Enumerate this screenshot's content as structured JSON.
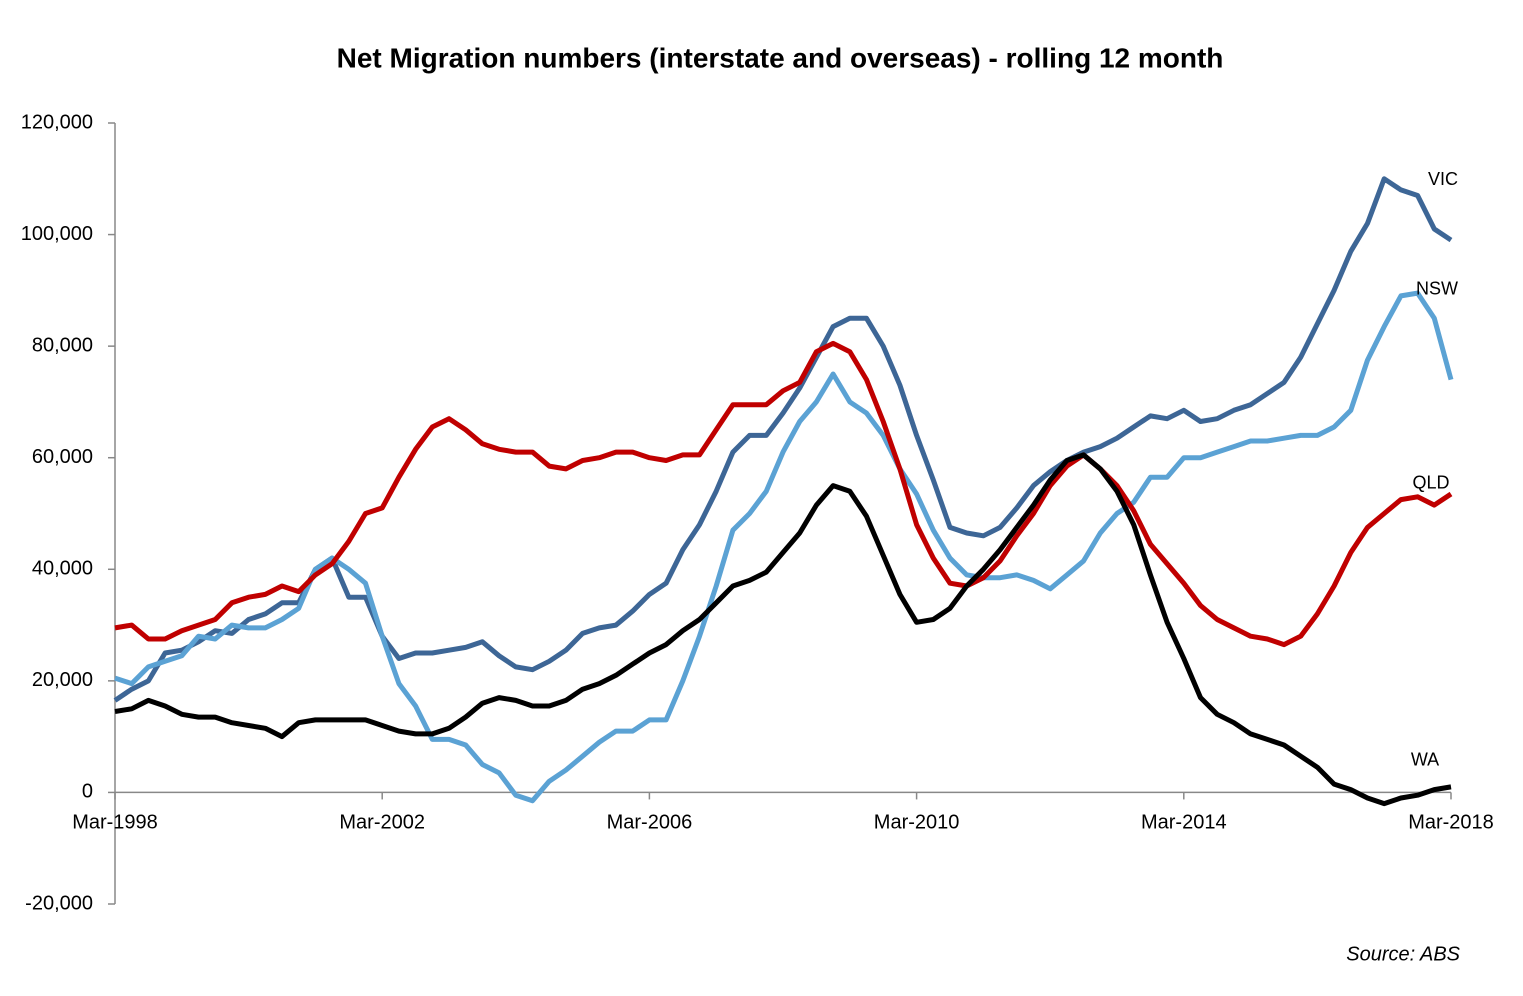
{
  "chart_data": {
    "type": "line",
    "title": "Net Migration numbers (interstate and overseas) - rolling 12 month",
    "source": "Source: ABS",
    "categories": [
      "Mar-1998",
      null,
      null,
      null,
      null,
      null,
      null,
      null,
      null,
      null,
      null,
      null,
      null,
      null,
      null,
      null,
      "Mar-2002",
      null,
      null,
      null,
      null,
      null,
      null,
      null,
      null,
      null,
      null,
      null,
      null,
      null,
      null,
      null,
      "Mar-2006",
      null,
      null,
      null,
      null,
      null,
      null,
      null,
      null,
      null,
      null,
      null,
      null,
      null,
      null,
      null,
      "Mar-2010",
      null,
      null,
      null,
      null,
      null,
      null,
      null,
      null,
      null,
      null,
      null,
      null,
      null,
      null,
      null,
      "Mar-2014",
      null,
      null,
      null,
      null,
      null,
      null,
      null,
      null,
      null,
      null,
      null,
      null,
      null,
      null,
      null,
      "Mar-2018"
    ],
    "ylim": [
      -20000,
      120000
    ],
    "yticks": [
      {
        "value": -20000,
        "label": "-20,000"
      },
      0,
      {
        "value": 20000,
        "label": "20,000"
      },
      {
        "value": 40000,
        "label": "40,000"
      },
      {
        "value": 60000,
        "label": "60,000"
      },
      {
        "value": 80000,
        "label": "80,000"
      },
      {
        "value": 100000,
        "label": "100,000"
      },
      {
        "value": 120000,
        "label": "120,000"
      }
    ],
    "grid": false,
    "series": [
      {
        "name": "VIC",
        "color": "#3d6696",
        "values": [
          16500,
          18500,
          20000,
          25000,
          25500,
          27000,
          29000,
          28500,
          31000,
          32000,
          34000,
          34000,
          40000,
          42000,
          35000,
          35000,
          28000,
          24000,
          25000,
          25000,
          25500,
          26000,
          27000,
          24500,
          22500,
          22000,
          23500,
          25500,
          28500,
          29500,
          30000,
          32500,
          35500,
          37500,
          43500,
          48000,
          54000,
          61000,
          64000,
          64000,
          68000,
          72500,
          78000,
          83500,
          85000,
          85000,
          80000,
          73000,
          64000,
          56000,
          47500,
          46500,
          46000,
          47500,
          51000,
          55000,
          57500,
          59500,
          61000,
          62000,
          63500,
          65500,
          67500,
          67000,
          68500,
          66500,
          67000,
          68500,
          69500,
          71500,
          73500,
          78000,
          84000,
          90000,
          97000,
          102000,
          110000,
          108000,
          107000,
          101000,
          99000
        ]
      },
      {
        "name": "NSW",
        "color": "#5ba2d4",
        "values": [
          20500,
          19500,
          22500,
          23500,
          24500,
          28000,
          27500,
          30000,
          29500,
          29500,
          31000,
          33000,
          40000,
          42000,
          40000,
          37500,
          28000,
          19500,
          15500,
          9500,
          9500,
          8500,
          5000,
          3500,
          -500,
          -1500,
          2000,
          4000,
          6500,
          9000,
          11000,
          11000,
          13000,
          13000,
          20000,
          28000,
          37000,
          47000,
          50000,
          54000,
          61000,
          66500,
          70000,
          75000,
          70000,
          68000,
          64000,
          58000,
          53500,
          47000,
          42000,
          39000,
          38500,
          38500,
          39000,
          38000,
          36500,
          39000,
          41500,
          46500,
          50000,
          52000,
          56500,
          56500,
          60000,
          60000,
          61000,
          62000,
          63000,
          63000,
          63500,
          64000,
          64000,
          65500,
          68500,
          77500,
          83500,
          89000,
          89500,
          85000,
          74000
        ]
      },
      {
        "name": "QLD",
        "color": "#c00000",
        "values": [
          29500,
          30000,
          27500,
          27500,
          29000,
          30000,
          31000,
          34000,
          35000,
          35500,
          37000,
          36000,
          39000,
          41000,
          45000,
          50000,
          51000,
          56500,
          61500,
          65500,
          67000,
          65000,
          62500,
          61500,
          61000,
          61000,
          58500,
          58000,
          59500,
          60000,
          61000,
          61000,
          60000,
          59500,
          60500,
          60500,
          65000,
          69500,
          69500,
          69500,
          72000,
          73500,
          79000,
          80500,
          79000,
          74000,
          66500,
          58000,
          48000,
          42000,
          37500,
          37000,
          38500,
          41500,
          46000,
          50000,
          55000,
          58500,
          60500,
          58000,
          55000,
          50500,
          44500,
          41000,
          37500,
          33500,
          31000,
          29500,
          28000,
          27500,
          26500,
          28000,
          32000,
          37000,
          43000,
          47500,
          50000,
          52500,
          53000,
          51500,
          53500
        ]
      },
      {
        "name": "WA",
        "color": "#000000",
        "values": [
          14500,
          15000,
          16500,
          15500,
          14000,
          13500,
          13500,
          12500,
          12000,
          11500,
          10000,
          12500,
          13000,
          13000,
          13000,
          13000,
          12000,
          11000,
          10500,
          10500,
          11500,
          13500,
          16000,
          17000,
          16500,
          15500,
          15500,
          16500,
          18500,
          19500,
          21000,
          23000,
          25000,
          26500,
          29000,
          31000,
          34000,
          37000,
          38000,
          39500,
          43000,
          46500,
          51500,
          55000,
          54000,
          49500,
          42500,
          35500,
          30500,
          31000,
          33000,
          37000,
          40000,
          43500,
          47500,
          51500,
          56000,
          59500,
          60500,
          58000,
          54000,
          48000,
          39000,
          30500,
          24000,
          17000,
          14000,
          12500,
          10500,
          9500,
          8500,
          6500,
          4500,
          1500,
          500,
          -1000,
          -2000,
          -1000,
          -500,
          500,
          1000
        ]
      }
    ]
  }
}
